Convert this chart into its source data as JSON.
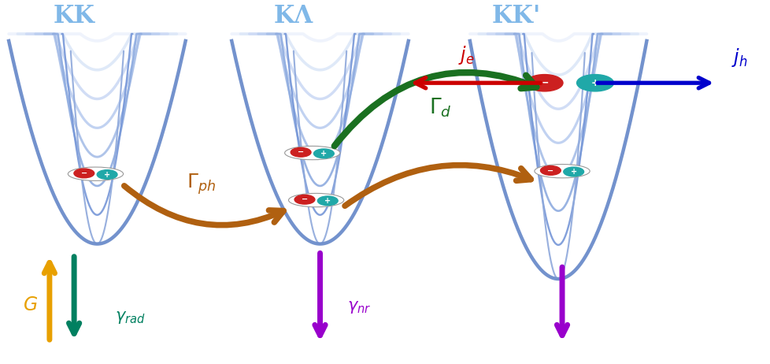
{
  "bg_color": "#ffffff",
  "fig_width": 9.79,
  "fig_height": 4.62,
  "funnel_labels": [
    "KK",
    "KΛ",
    "KK'"
  ],
  "label_color": "#80b8e8",
  "label_fontsize": 22,
  "arrow_ph_color": "#b06010",
  "arrow_d_color": "#1a7020",
  "arrow_je_color": "#cc0000",
  "arrow_jh_color": "#0000cc",
  "arrow_G_color": "#e8a000",
  "arrow_gamma_rad_color": "#008060",
  "arrow_gamma_nr_color": "#9900cc",
  "funnel_layer_colors": [
    "#eef3fc",
    "#dde8f8",
    "#cddaf5",
    "#bccef0",
    "#a8bfe8",
    "#90ade0",
    "#7898d8",
    "#90aadc"
  ]
}
